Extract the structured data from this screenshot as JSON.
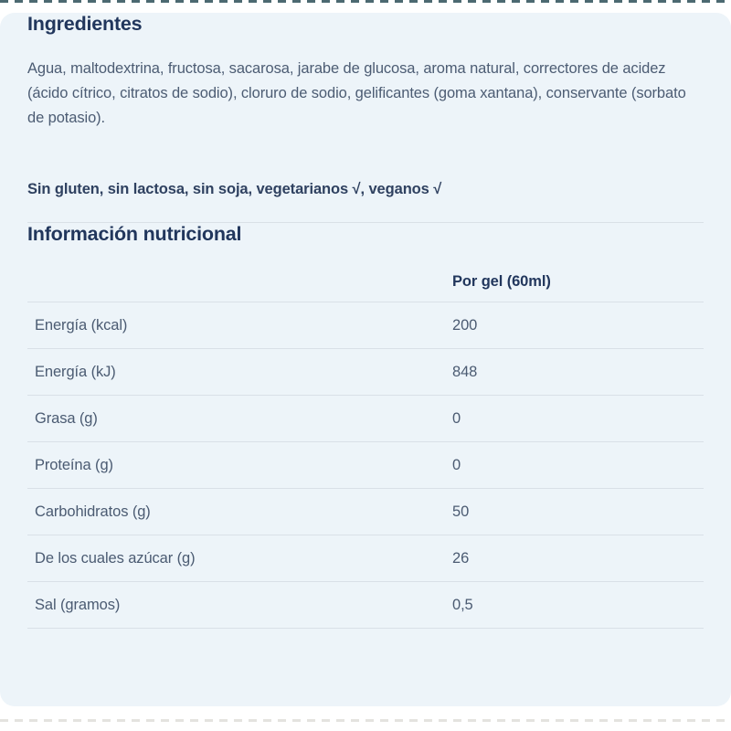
{
  "page": {
    "background_color": "#ffffff",
    "panel_background_color": "#edf4f9",
    "heading_color": "#21365c",
    "body_text_color": "#4c5c73",
    "divider_color": "#d9e0e7",
    "edge_dash_color": "#2d4f58"
  },
  "ingredients": {
    "title": "Ingredientes",
    "text": "Agua, maltodextrina, fructosa, sacarosa, jarabe de glucosa, aroma natural, correctores de acidez (ácido cítrico, citratos de sodio), cloruro de sodio, gelificantes (goma xantana), conservante (sorbato de potasio).",
    "dietary_note": "Sin gluten, sin lactosa, sin soja, vegetarianos √, veganos √"
  },
  "nutrition": {
    "title": "Información nutricional",
    "column_header": "Por gel (60ml)",
    "rows": [
      {
        "label": "Energía (kcal)",
        "value": "200"
      },
      {
        "label": "Energía (kJ)",
        "value": "848"
      },
      {
        "label": "Grasa (g)",
        "value": "0"
      },
      {
        "label": "Proteína (g)",
        "value": "0"
      },
      {
        "label": "Carbohidratos (g)",
        "value": "50"
      },
      {
        "label": "De los cuales azúcar (g)",
        "value": "26"
      },
      {
        "label": "Sal (gramos)",
        "value": "0,5"
      }
    ]
  }
}
